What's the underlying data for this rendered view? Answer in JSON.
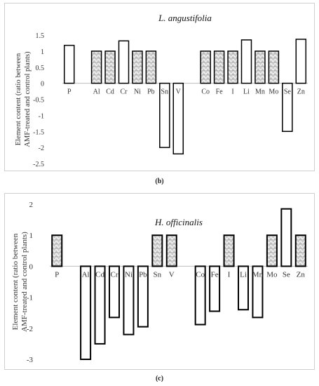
{
  "captions": [
    "(b)",
    "(c)"
  ],
  "chart_data": [
    {
      "type": "bar",
      "title": "L. angustifolia",
      "ylabel_lines": [
        "Element content (ratio between",
        "AMF-treated and control plants)"
      ],
      "ylim": [
        -2.5,
        1.5
      ],
      "yticks": [
        "1.5",
        "1",
        "0.5",
        "0",
        "-0.5",
        "-1",
        "-1.5",
        "-2",
        "-2.5"
      ],
      "categories": [
        "P",
        "",
        "Al",
        "Cd",
        "Cr",
        "Ni",
        "Pb",
        "Sn",
        "V",
        "",
        "Co",
        "Fe",
        "I",
        "Li",
        "Mn",
        "Mo",
        "Se",
        "Zn"
      ],
      "values": [
        1.18,
        null,
        1.0,
        1.0,
        1.32,
        1.0,
        1.0,
        -2.0,
        -2.2,
        null,
        1.0,
        1.0,
        1.0,
        1.35,
        1.0,
        1.0,
        -1.5,
        1.37
      ],
      "patterned": [
        false,
        false,
        true,
        true,
        false,
        true,
        true,
        false,
        false,
        false,
        true,
        true,
        true,
        false,
        true,
        true,
        false,
        false
      ],
      "grid": false
    },
    {
      "type": "bar",
      "title": "H. officinalis",
      "ylabel_lines": [
        "Element content (ratio between",
        "AMF-treated and control plants)"
      ],
      "ylim": [
        -3,
        2
      ],
      "yticks": [
        "2",
        "1",
        "0",
        "-1",
        "-2",
        "-3"
      ],
      "categories": [
        "P",
        "",
        "Al",
        "Cd",
        "Cr",
        "Ni",
        "Pb",
        "Sn",
        "V",
        "",
        "Co",
        "Fe",
        "I",
        "Li",
        "Mn",
        "Mo",
        "Se",
        "Zn"
      ],
      "values": [
        1.0,
        null,
        -3.0,
        -2.5,
        -1.65,
        -2.2,
        -1.95,
        1.0,
        1.0,
        null,
        -1.88,
        -1.45,
        1.0,
        -1.4,
        -1.65,
        1.0,
        1.85,
        1.0
      ],
      "patterned": [
        true,
        false,
        false,
        false,
        false,
        false,
        false,
        true,
        true,
        false,
        false,
        false,
        true,
        false,
        false,
        true,
        false,
        true
      ],
      "grid": false
    }
  ]
}
